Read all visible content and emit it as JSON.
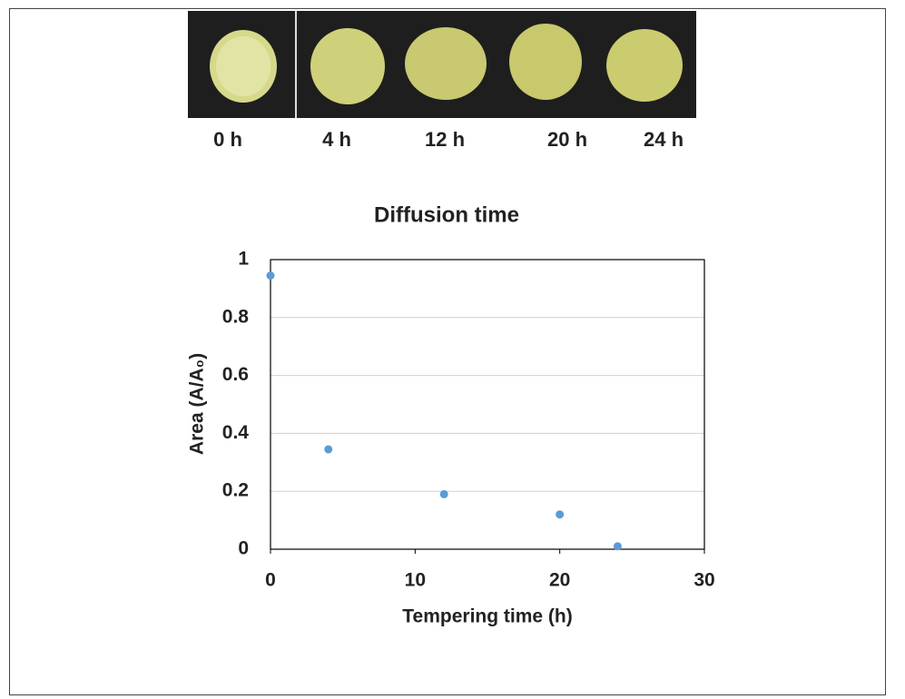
{
  "photo_labels": [
    "0 h",
    "4 h",
    "12 h",
    "20 h",
    "24 h"
  ],
  "chart_data": {
    "type": "scatter",
    "title": "Diffusion time",
    "x_label": "Tempering time (h)",
    "y_label": "Area (A/A₀)",
    "x": [
      0,
      4,
      12,
      20,
      24
    ],
    "values": [
      0.945,
      0.345,
      0.19,
      0.12,
      0.01
    ],
    "color": "#5b9bd5",
    "xlim": [
      0,
      30
    ],
    "xticks": [
      0,
      10,
      20,
      30
    ],
    "ylim": [
      0,
      1
    ],
    "yticks": [
      0,
      0.2,
      0.4,
      0.6,
      0.8,
      1
    ],
    "grid": true
  }
}
